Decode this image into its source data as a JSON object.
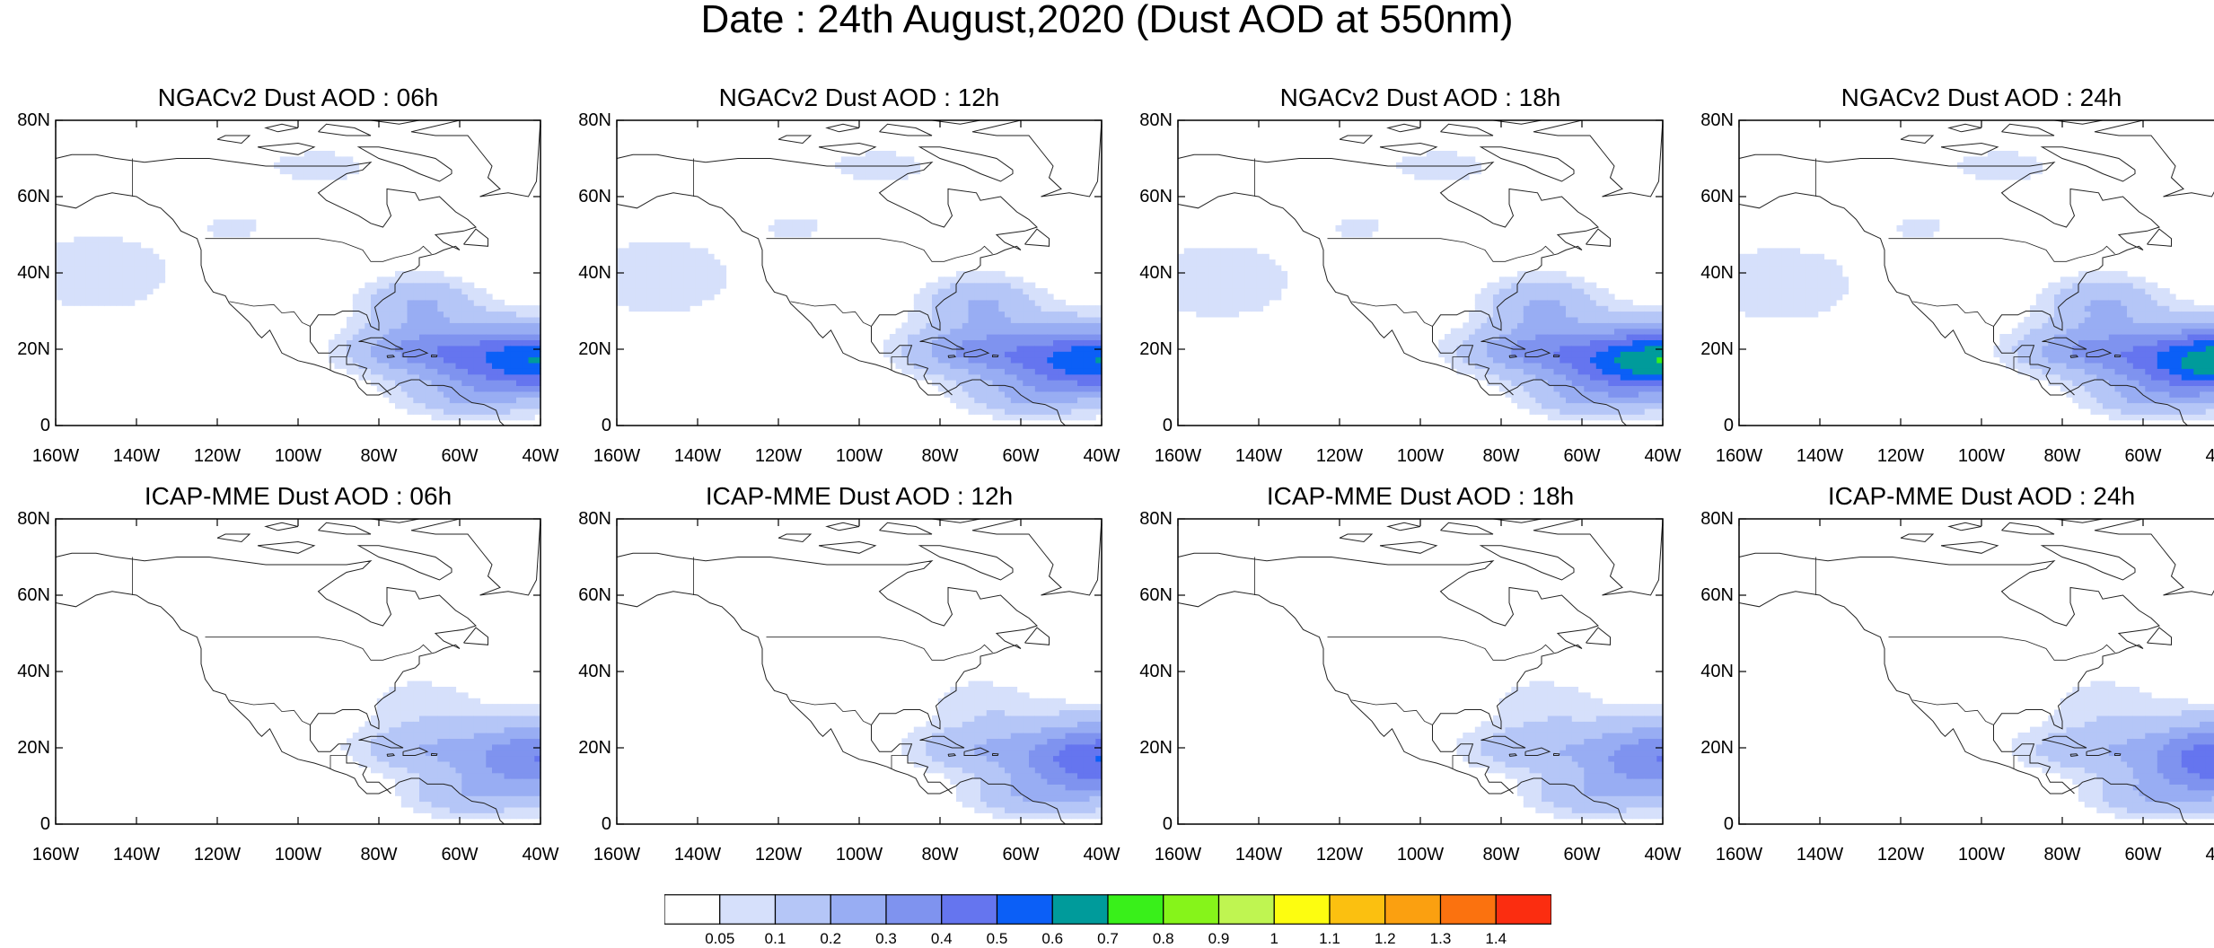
{
  "figure": {
    "title": "Date : 24th August,2020 (Dust AOD at 550nm)"
  },
  "map_axes": {
    "lat_ticks": [
      "80N",
      "60N",
      "40N",
      "20N",
      "0"
    ],
    "lon_ticks": [
      "160W",
      "140W",
      "120W",
      "100W",
      "80W",
      "60W",
      "40W"
    ],
    "lat_range": [
      0,
      80
    ],
    "lon_range": [
      -160,
      -40
    ]
  },
  "panels": [
    {
      "title": "NGACv2 Dust AOD : 06h",
      "model": "NGACv2",
      "hour": "06h",
      "max_aod": 0.6
    },
    {
      "title": "NGACv2 Dust AOD : 12h",
      "model": "NGACv2",
      "hour": "12h",
      "max_aod": 0.6
    },
    {
      "title": "NGACv2 Dust AOD : 18h",
      "model": "NGACv2",
      "hour": "18h",
      "max_aod": 0.7
    },
    {
      "title": "NGACv2 Dust AOD : 24h",
      "model": "NGACv2",
      "hour": "24h",
      "max_aod": 0.7
    },
    {
      "title": "ICAP-MME Dust AOD : 06h",
      "model": "ICAP-MME",
      "hour": "06h",
      "max_aod": 0.4
    },
    {
      "title": "ICAP-MME Dust AOD : 12h",
      "model": "ICAP-MME",
      "hour": "12h",
      "max_aod": 0.5
    },
    {
      "title": "ICAP-MME Dust AOD : 18h",
      "model": "ICAP-MME",
      "hour": "18h",
      "max_aod": 0.4
    },
    {
      "title": "ICAP-MME Dust AOD : 24h",
      "model": "ICAP-MME",
      "hour": "24h",
      "max_aod": 0.5
    }
  ],
  "colorbar": {
    "labels": [
      "0.05",
      "0.1",
      "0.2",
      "0.3",
      "0.4",
      "0.5",
      "0.6",
      "0.7",
      "0.8",
      "0.9",
      "1",
      "1.1",
      "1.2",
      "1.3",
      "1.4"
    ],
    "colors": [
      "#ffffff",
      "#d6e0fb",
      "#b5c6f7",
      "#98adf3",
      "#7f93ef",
      "#6575ef",
      "#0b5ff7",
      "#009b9b",
      "#39f01a",
      "#86f41a",
      "#bff551",
      "#fdfd10",
      "#fbc010",
      "#fba010",
      "#fb720f",
      "#fb2d10"
    ]
  }
}
